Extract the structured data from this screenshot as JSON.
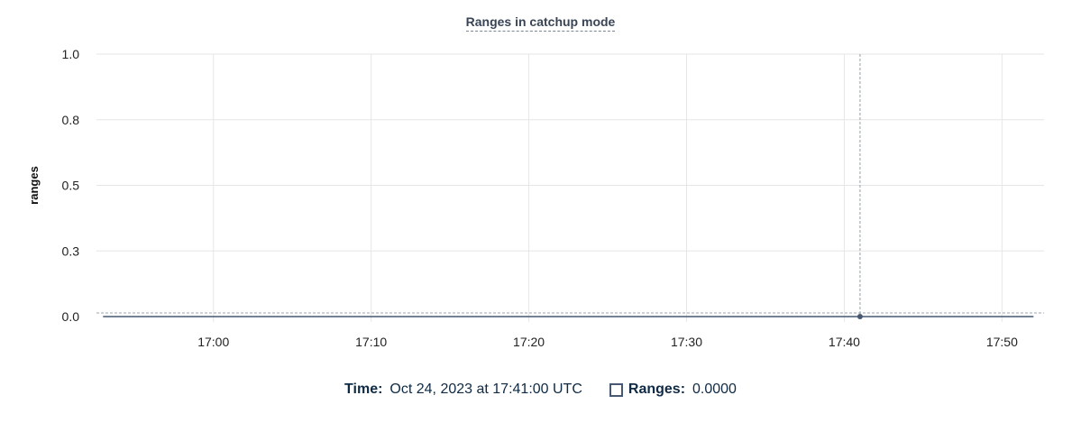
{
  "chart_data": {
    "type": "line",
    "title": "Ranges in catchup mode",
    "ylabel": "ranges",
    "xlabel": "",
    "ylim": [
      0,
      1
    ],
    "yticks": [
      {
        "v": 0,
        "label": "0.0"
      },
      {
        "v": 0.25,
        "label": "0.3"
      },
      {
        "v": 0.5,
        "label": "0.5"
      },
      {
        "v": 0.75,
        "label": "0.8"
      },
      {
        "v": 1,
        "label": "1.0"
      }
    ],
    "xlim": [
      "16:52:35",
      "17:52:40"
    ],
    "xticks": [
      "17:00",
      "17:10",
      "17:20",
      "17:30",
      "17:40",
      "17:50"
    ],
    "grid": true,
    "series": [
      {
        "name": "Ranges",
        "color": "#475872",
        "x": [
          "16:53",
          "16:54",
          "16:55",
          "16:56",
          "16:57",
          "16:58",
          "16:59",
          "17:00",
          "17:01",
          "17:02",
          "17:03",
          "17:04",
          "17:05",
          "17:06",
          "17:07",
          "17:08",
          "17:09",
          "17:10",
          "17:11",
          "17:12",
          "17:13",
          "17:14",
          "17:15",
          "17:16",
          "17:17",
          "17:18",
          "17:19",
          "17:20",
          "17:21",
          "17:22",
          "17:23",
          "17:24",
          "17:25",
          "17:26",
          "17:27",
          "17:28",
          "17:29",
          "17:30",
          "17:31",
          "17:32",
          "17:33",
          "17:34",
          "17:35",
          "17:36",
          "17:37",
          "17:38",
          "17:39",
          "17:40",
          "17:41",
          "17:42",
          "17:43",
          "17:44",
          "17:45",
          "17:46",
          "17:47",
          "17:48",
          "17:49",
          "17:50",
          "17:51",
          "17:52"
        ],
        "values": [
          0,
          0,
          0,
          0,
          0,
          0,
          0,
          0,
          0,
          0,
          0,
          0,
          0,
          0,
          0,
          0,
          0,
          0,
          0,
          0,
          0,
          0,
          0,
          0,
          0,
          0,
          0,
          0,
          0,
          0,
          0,
          0,
          0,
          0,
          0,
          0,
          0,
          0,
          0,
          0,
          0,
          0,
          0,
          0,
          0,
          0,
          0,
          0,
          0,
          0,
          0,
          0,
          0,
          0,
          0,
          0,
          0,
          0,
          0,
          0
        ]
      }
    ],
    "cursor": {
      "x": "17:41",
      "value": 0
    }
  },
  "legend": {
    "time_label": "Time:",
    "time_value": "Oct 24, 2023 at 17:41:00 UTC",
    "series_label": "Ranges:",
    "series_value": "0.0000"
  }
}
